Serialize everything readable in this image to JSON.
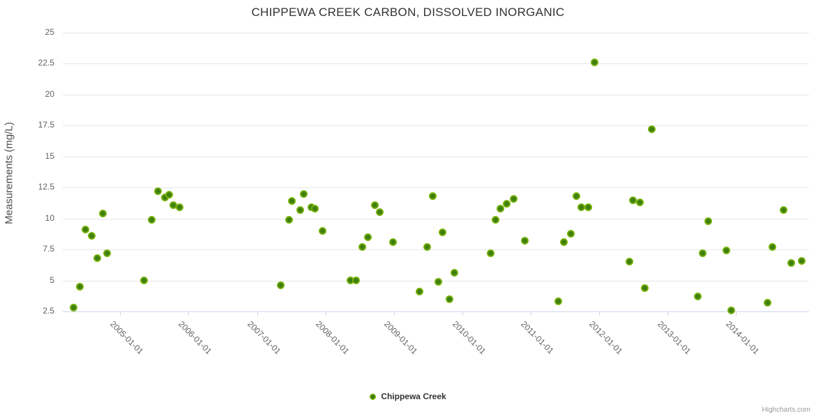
{
  "chart_data": {
    "type": "scatter",
    "title": "CHIPPEWA CREEK CARBON, DISSOLVED INORGANIC",
    "xlabel": "",
    "ylabel": "Measurements (mg/L)",
    "x_axis": {
      "ticks": [
        2005,
        2006,
        2007,
        2008,
        2009,
        2010,
        2011,
        2012,
        2013,
        2014
      ],
      "tick_labels": [
        "2005-01-01",
        "2006-01-01",
        "2007-01-01",
        "2008-01-01",
        "2009-01-01",
        "2010-01-01",
        "2011-01-01",
        "2012-01-01",
        "2013-01-01",
        "2014-01-01"
      ],
      "range": [
        2004.16,
        2015.07
      ],
      "label_rotation_deg": 45
    },
    "y_axis": {
      "ticks": [
        2.5,
        5,
        7.5,
        10,
        12.5,
        15,
        17.5,
        20,
        22.5,
        25
      ],
      "tick_labels": [
        "2.5",
        "5",
        "7.5",
        "10",
        "12.5",
        "15",
        "17.5",
        "20",
        "22.5",
        "25"
      ],
      "range": [
        2.5,
        25
      ]
    },
    "grid": "horizontal",
    "legend_position": "bottom-center",
    "series": [
      {
        "name": "Chippewa Creek",
        "color": "#7db80a",
        "marker_center_color": "#3e7d0e",
        "points": [
          [
            2004.32,
            2.8
          ],
          [
            2004.41,
            4.5
          ],
          [
            2004.49,
            9.1
          ],
          [
            2004.58,
            8.6
          ],
          [
            2004.66,
            6.8
          ],
          [
            2004.75,
            10.4
          ],
          [
            2004.81,
            7.2
          ],
          [
            2005.35,
            5.0
          ],
          [
            2005.46,
            9.9
          ],
          [
            2005.55,
            12.2
          ],
          [
            2005.65,
            11.7
          ],
          [
            2005.72,
            11.9
          ],
          [
            2005.78,
            11.1
          ],
          [
            2005.87,
            10.9
          ],
          [
            2007.35,
            4.6
          ],
          [
            2007.47,
            9.9
          ],
          [
            2007.51,
            11.4
          ],
          [
            2007.63,
            10.7
          ],
          [
            2007.68,
            12.0
          ],
          [
            2007.79,
            10.9
          ],
          [
            2007.85,
            10.8
          ],
          [
            2007.96,
            9.0
          ],
          [
            2008.37,
            5.0
          ],
          [
            2008.45,
            5.0
          ],
          [
            2008.54,
            7.7
          ],
          [
            2008.62,
            8.5
          ],
          [
            2008.72,
            11.1
          ],
          [
            2008.79,
            10.5
          ],
          [
            2008.99,
            8.1
          ],
          [
            2009.38,
            4.1
          ],
          [
            2009.49,
            7.7
          ],
          [
            2009.57,
            11.8
          ],
          [
            2009.65,
            4.9
          ],
          [
            2009.71,
            8.9
          ],
          [
            2009.81,
            3.5
          ],
          [
            2009.89,
            5.6
          ],
          [
            2010.42,
            7.2
          ],
          [
            2010.49,
            9.9
          ],
          [
            2010.56,
            10.8
          ],
          [
            2010.65,
            11.2
          ],
          [
            2010.75,
            11.6
          ],
          [
            2010.92,
            8.2
          ],
          [
            2011.4,
            3.3
          ],
          [
            2011.49,
            8.1
          ],
          [
            2011.59,
            8.8
          ],
          [
            2011.67,
            11.8
          ],
          [
            2011.74,
            10.9
          ],
          [
            2011.84,
            10.9
          ],
          [
            2011.93,
            22.6
          ],
          [
            2012.44,
            6.5
          ],
          [
            2012.5,
            11.5
          ],
          [
            2012.6,
            11.3
          ],
          [
            2012.67,
            4.4
          ],
          [
            2012.77,
            17.2
          ],
          [
            2013.44,
            3.7
          ],
          [
            2013.52,
            7.2
          ],
          [
            2013.6,
            9.8
          ],
          [
            2013.86,
            7.4
          ],
          [
            2013.93,
            2.6
          ],
          [
            2014.46,
            3.2
          ],
          [
            2014.53,
            7.7
          ],
          [
            2014.7,
            10.7
          ],
          [
            2014.81,
            6.4
          ],
          [
            2014.96,
            6.6
          ]
        ]
      }
    ]
  },
  "credits": "Highcharts.com",
  "colors": {
    "point_outer": "#7db80a",
    "point_inner": "#3e7d0e",
    "gridline": "#e6e6e6",
    "axis_line": "#ccd6eb",
    "axis_label": "#606060",
    "title_text": "#333333",
    "credits_text": "#999999"
  }
}
